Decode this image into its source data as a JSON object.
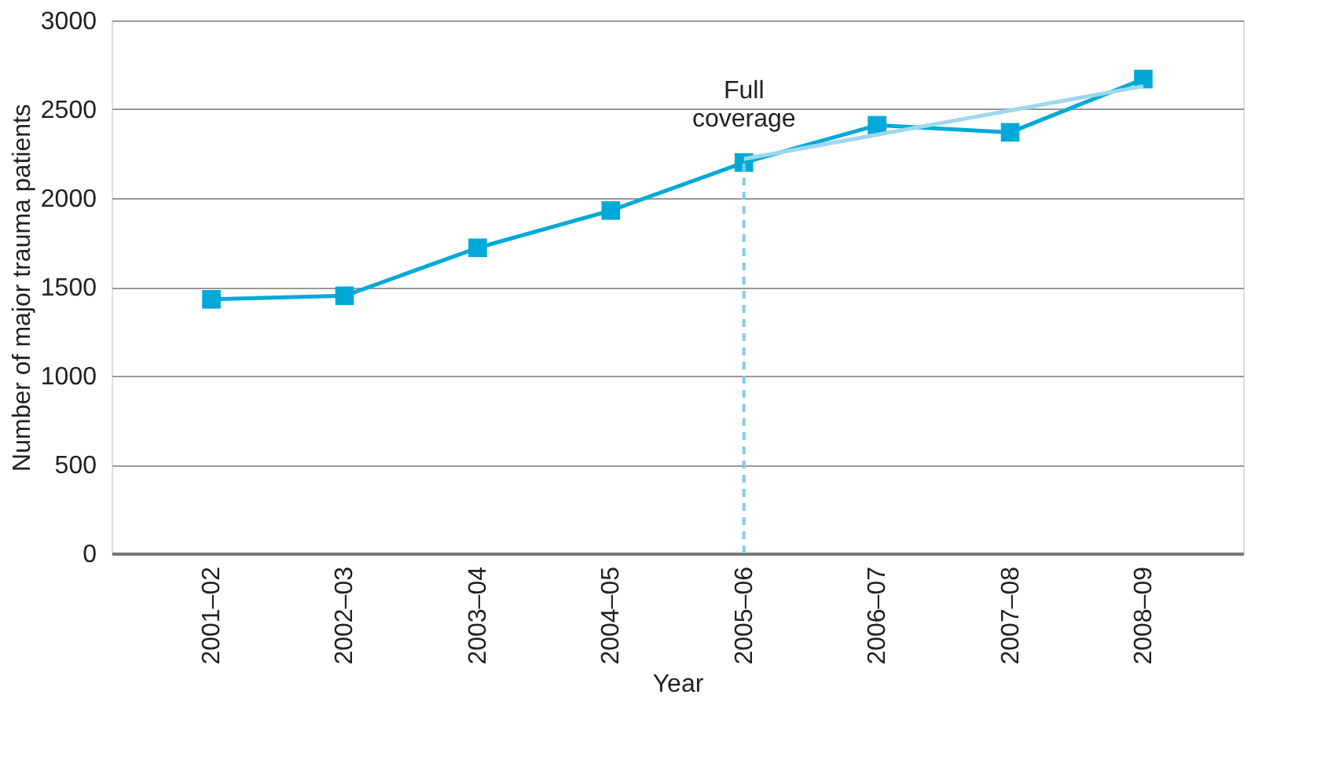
{
  "chart_data": {
    "type": "line",
    "xlabel": "Year",
    "ylabel": "Number of major trauma patients",
    "categories": [
      "2001–02",
      "2002–03",
      "2003–04",
      "2004–05",
      "2005–06",
      "2006–07",
      "2007–08",
      "2008–09"
    ],
    "series": [
      {
        "color": "#00a9d8",
        "values": [
          1430,
          1450,
          1720,
          1930,
          2200,
          2410,
          2370,
          2670
        ],
        "marker": "square"
      },
      {
        "type": "line",
        "color": "#9ed8ee",
        "x": [
          "2005–06",
          "2008–09"
        ],
        "values": [
          2220,
          2630
        ],
        "marker": "none"
      }
    ],
    "ylim": [
      0,
      3000
    ],
    "yticks": [
      0,
      500,
      1000,
      1500,
      2000,
      2500,
      3000
    ],
    "grid": "y",
    "legend": false,
    "ref_lines": [
      {
        "axis": "x",
        "value": "2005–06",
        "label": "Full coverage",
        "color": "#7fcde8",
        "line_style": "dashed"
      }
    ]
  }
}
